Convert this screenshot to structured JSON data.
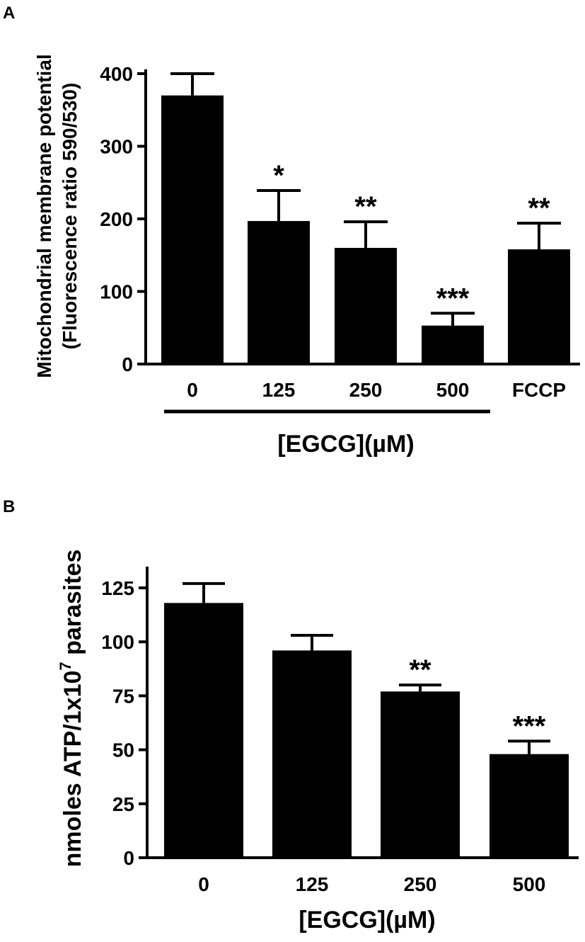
{
  "chart_data": [
    {
      "panel": "A",
      "type": "bar",
      "categories": [
        "0",
        "125",
        "250",
        "500",
        "FCCP"
      ],
      "values": [
        370,
        197,
        160,
        53,
        158
      ],
      "errors": [
        30,
        42,
        36,
        17,
        36
      ],
      "significance": [
        "",
        "*",
        "**",
        "***",
        "**"
      ],
      "ylabel_line1": "Mitochondrial membrane potential",
      "ylabel_line2": "(Fluorescence ratio 590/530)",
      "xlabel": "[EGCG](µM)",
      "ylim": [
        0,
        400
      ],
      "yticks": [
        "0",
        "100",
        "200",
        "300",
        "400"
      ],
      "bar_color": "#000000"
    },
    {
      "panel": "B",
      "type": "bar",
      "categories": [
        "0",
        "125",
        "250",
        "500"
      ],
      "values": [
        118,
        96,
        77,
        48
      ],
      "errors": [
        9,
        7,
        3,
        6
      ],
      "significance": [
        "",
        "",
        "**",
        "***"
      ],
      "ylabel_main": "nmoles ATP/1x10",
      "ylabel_sup": "7",
      "ylabel_tail": " parasites",
      "xlabel": "[EGCG](µM)",
      "ylim": [
        0,
        125
      ],
      "yticks": [
        "0",
        "25",
        "50",
        "75",
        "100",
        "125"
      ],
      "bar_color": "#000000"
    }
  ]
}
